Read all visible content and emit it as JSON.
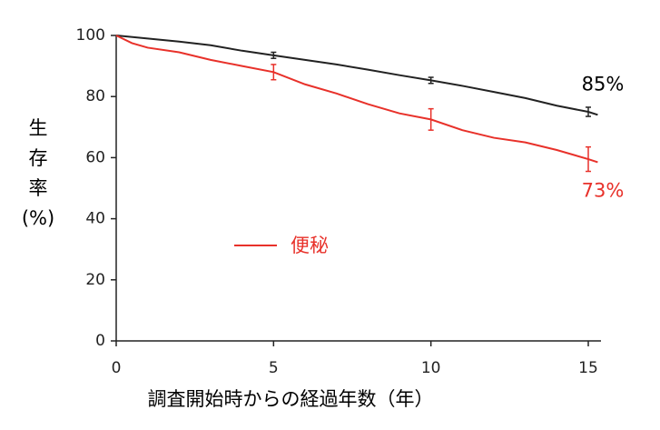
{
  "chart_data": {
    "type": "line",
    "ylabel": [
      "生",
      "存",
      "率",
      "(%)"
    ],
    "xlabel": "調査開始時からの経過年数（年）",
    "xlim": [
      0,
      15
    ],
    "xticks": [
      0,
      5,
      10,
      15
    ],
    "ylim": [
      0,
      100
    ],
    "yticks": [
      0,
      20,
      40,
      60,
      80,
      100
    ],
    "series": [
      {
        "color": "#222222",
        "x": [
          0,
          1,
          2,
          3,
          4,
          5,
          6,
          7,
          8,
          9,
          10,
          11,
          12,
          13,
          14,
          15,
          15.3
        ],
        "values": [
          100,
          99,
          98,
          96.8,
          95,
          93.5,
          92,
          90.5,
          88.8,
          87,
          85.3,
          83.5,
          81.5,
          79.5,
          77,
          75,
          74
        ],
        "error_bars": {
          "x": [
            5,
            10,
            15
          ],
          "values": [
            93.5,
            85.3,
            75
          ],
          "errors": [
            1,
            1,
            1.5
          ]
        }
      },
      {
        "name": "便秘",
        "color": "#e8312a",
        "x": [
          0,
          0.5,
          1,
          2,
          3,
          4,
          5,
          6,
          7,
          8,
          9,
          10,
          11,
          12,
          13,
          14,
          15,
          15.3
        ],
        "values": [
          100,
          97.5,
          96,
          94.5,
          92,
          90,
          88,
          84,
          81,
          77.5,
          74.5,
          72.5,
          69,
          66.5,
          65,
          62.5,
          59.5,
          58.5
        ],
        "error_bars": {
          "x": [
            5,
            10,
            15
          ],
          "values": [
            88,
            72.5,
            59.5
          ],
          "errors": [
            2.5,
            3.5,
            4
          ]
        }
      }
    ],
    "annotations": [
      {
        "text": "85%",
        "color": "#000000"
      },
      {
        "text": "73%",
        "color": "#e8312a"
      }
    ]
  }
}
